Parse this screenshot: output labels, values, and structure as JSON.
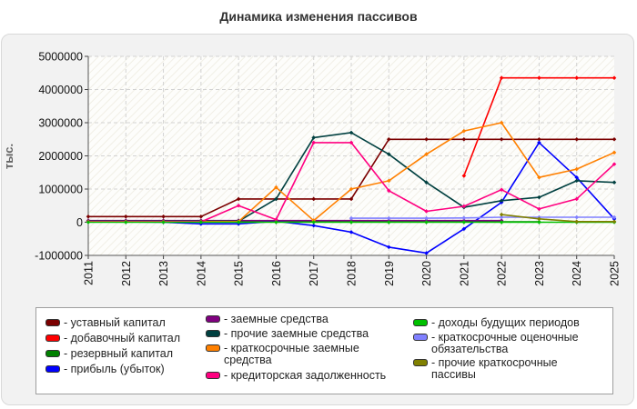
{
  "chart_data": {
    "type": "line",
    "title": "Динамика изменения пассивов",
    "ylabel": "тыс.",
    "xlabel": "",
    "ylim": [
      -1000000,
      5000000
    ],
    "y_ticks": [
      "5000000",
      "4000000",
      "3000000",
      "2000000",
      "1000000",
      "0",
      "-1000000"
    ],
    "x": [
      "2011",
      "2012",
      "2013",
      "2014",
      "2015",
      "2016",
      "2017",
      "2018",
      "2019",
      "2020",
      "2021",
      "2022",
      "2023",
      "2024",
      "2025"
    ],
    "grid": true,
    "legend_position": "bottom",
    "series": [
      {
        "name": "- уставный капитал",
        "color": "#7b0000",
        "values": [
          170000,
          170000,
          170000,
          170000,
          700000,
          700000,
          700000,
          700000,
          2500000,
          2500000,
          2500000,
          2500000,
          2500000,
          2500000,
          2500000
        ]
      },
      {
        "name": "- добавочный капитал",
        "color": "#ff0000",
        "values": [
          null,
          null,
          null,
          null,
          null,
          null,
          null,
          null,
          null,
          null,
          1400000,
          4350000,
          4350000,
          4350000,
          4350000
        ]
      },
      {
        "name": "- резервный капитал",
        "color": "#008000",
        "values": [
          10000,
          10000,
          10000,
          10000,
          10000,
          10000,
          10000,
          10000,
          10000,
          10000,
          10000,
          10000,
          10000,
          null,
          null
        ]
      },
      {
        "name": "- прибыль (убыток)",
        "color": "#0000ff",
        "values": [
          20000,
          10000,
          0,
          -50000,
          -50000,
          30000,
          -100000,
          -300000,
          -750000,
          -930000,
          -200000,
          600000,
          2400000,
          1350000,
          100000
        ]
      },
      {
        "name": "- заемные средства",
        "color": "#800080",
        "values": [
          50000,
          50000,
          50000,
          50000,
          50000,
          50000,
          50000,
          50000,
          50000,
          50000,
          50000,
          50000,
          null,
          null,
          null
        ]
      },
      {
        "name": "- прочие заемные средства",
        "color": "#004040",
        "values": [
          30000,
          30000,
          30000,
          30000,
          30000,
          700000,
          2550000,
          2700000,
          2050000,
          1200000,
          450000,
          650000,
          750000,
          1250000,
          1200000
        ]
      },
      {
        "name": "- краткосрочные заемные средства",
        "color": "#ff8000",
        "values": [
          20000,
          20000,
          20000,
          20000,
          20000,
          1050000,
          50000,
          1000000,
          1250000,
          2050000,
          2750000,
          3000000,
          1350000,
          1600000,
          2100000
        ]
      },
      {
        "name": "- кредиторская задолженность",
        "color": "#ff0080",
        "values": [
          10000,
          10000,
          10000,
          10000,
          500000,
          80000,
          2400000,
          2400000,
          950000,
          330000,
          480000,
          980000,
          400000,
          700000,
          1750000
        ]
      },
      {
        "name": "- доходы будущих периодов",
        "color": "#00c000",
        "values": [
          0,
          0,
          0,
          0,
          0,
          0,
          0,
          0,
          0,
          0,
          0,
          0,
          0,
          0,
          0
        ]
      },
      {
        "name": "- краткосрочные оценочные обязательства",
        "color": "#8080ff",
        "values": [
          null,
          null,
          null,
          null,
          null,
          null,
          null,
          120000,
          120000,
          120000,
          130000,
          150000,
          150000,
          150000,
          150000
        ]
      },
      {
        "name": "- прочие краткосрочные пассивы",
        "color": "#808000",
        "values": [
          null,
          null,
          null,
          null,
          null,
          null,
          null,
          null,
          null,
          null,
          null,
          230000,
          100000,
          20000,
          20000
        ]
      }
    ]
  }
}
